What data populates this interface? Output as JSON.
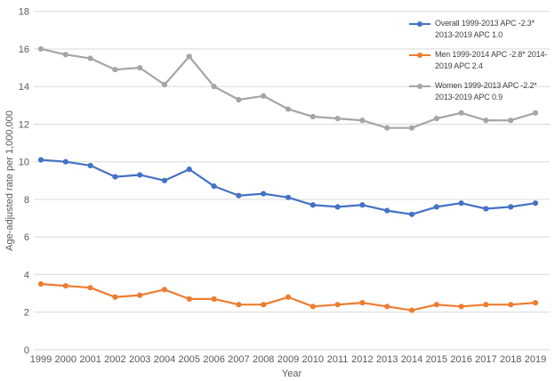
{
  "chart_data": {
    "type": "line",
    "title": "",
    "xlabel": "Year",
    "ylabel": "Age-adjusted rate per 1,000,000",
    "x": [
      1999,
      2000,
      2001,
      2002,
      2003,
      2004,
      2005,
      2006,
      2007,
      2008,
      2009,
      2010,
      2011,
      2012,
      2013,
      2014,
      2015,
      2016,
      2017,
      2018,
      2019
    ],
    "ylim": [
      0,
      18
    ],
    "yticks": [
      0,
      2,
      4,
      6,
      8,
      10,
      12,
      14,
      16,
      18
    ],
    "grid": true,
    "legend_position": "top-right",
    "series": [
      {
        "name": "overall",
        "label": "Overall 1999-2013 APC -2.3* 2013-2019 APC 1.0",
        "color": "#4472C4",
        "values": [
          10.1,
          10.0,
          9.8,
          9.2,
          9.3,
          9.0,
          9.6,
          8.7,
          8.2,
          8.3,
          8.1,
          7.7,
          7.6,
          7.7,
          7.4,
          7.2,
          7.6,
          7.8,
          7.5,
          7.6,
          7.8
        ]
      },
      {
        "name": "men",
        "label": "Men 1999-2014 APC -2.8* 2014-2019 APC 2.4",
        "color": "#ED7D31",
        "values": [
          3.5,
          3.4,
          3.3,
          2.8,
          2.9,
          3.2,
          2.7,
          2.7,
          2.4,
          2.4,
          2.8,
          2.3,
          2.4,
          2.5,
          2.3,
          2.1,
          2.4,
          2.3,
          2.4,
          2.4,
          2.5
        ]
      },
      {
        "name": "women",
        "label": "Women 1999-2013 APC -2.2* 2013-2019 APC 0.9",
        "color": "#A5A5A5",
        "values": [
          16.0,
          15.7,
          15.5,
          14.9,
          15.0,
          14.1,
          15.6,
          14.0,
          13.3,
          13.5,
          12.8,
          12.4,
          12.3,
          12.2,
          11.8,
          11.8,
          12.3,
          12.6,
          12.2,
          12.2,
          12.6
        ]
      }
    ],
    "colors": {
      "gridline": "#D9D9D9",
      "tick_text": "#595959",
      "legend_text": "#404040",
      "background": "#FFFFFF"
    }
  }
}
